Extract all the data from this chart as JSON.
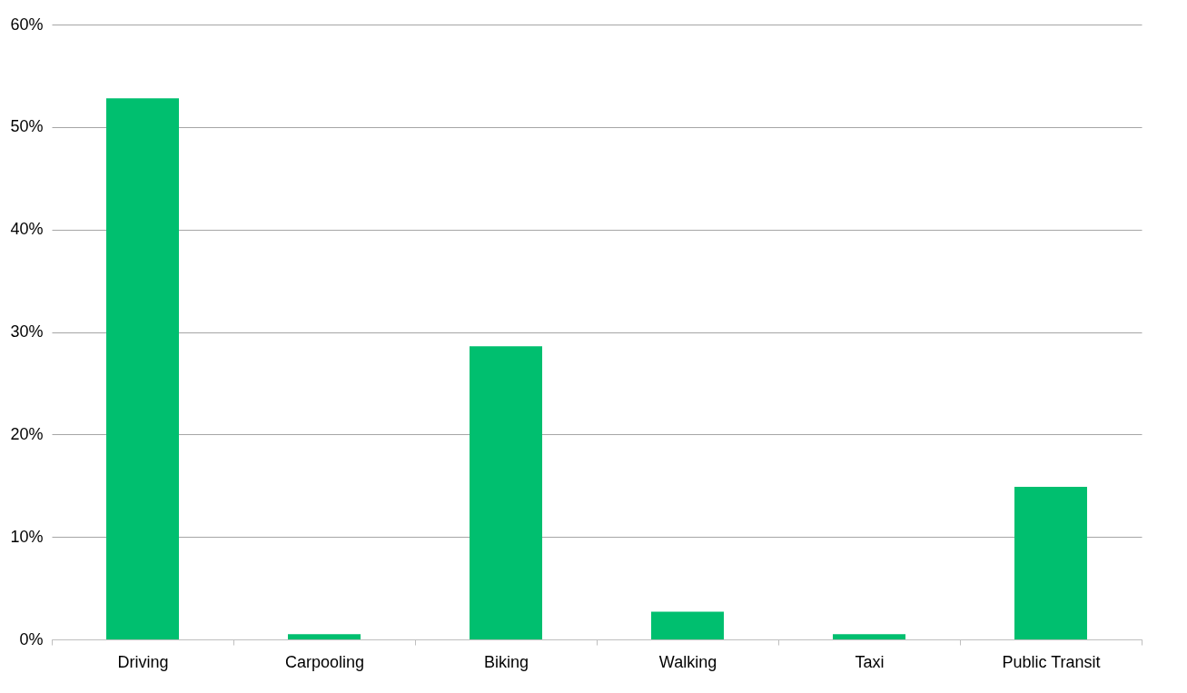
{
  "chart_data": {
    "type": "bar",
    "categories": [
      "Driving",
      "Carpooling",
      "Biking",
      "Walking",
      "Taxi",
      "Public Transit"
    ],
    "values": [
      52.8,
      0.5,
      28.6,
      2.7,
      0.5,
      14.9
    ],
    "color": "#00bf6f",
    "ylim": [
      0,
      60
    ],
    "yticks": [
      {
        "value": 0,
        "label": "0%"
      },
      {
        "value": 10,
        "label": "10%"
      },
      {
        "value": 20,
        "label": "20%"
      },
      {
        "value": 30,
        "label": "30%"
      },
      {
        "value": 40,
        "label": "40%"
      },
      {
        "value": 50,
        "label": "50%"
      },
      {
        "value": 60,
        "label": "60%"
      }
    ],
    "grid": "y"
  }
}
